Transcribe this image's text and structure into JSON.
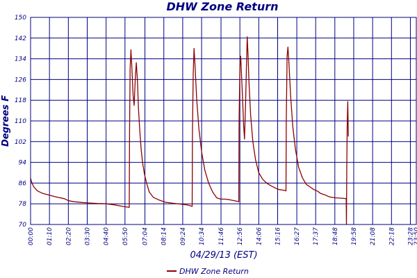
{
  "chart_data": {
    "type": "line",
    "title": "DHW Zone Return",
    "xlabel": "04/29/13 (EST)",
    "ylabel": "Degrees F",
    "ylim": [
      70,
      150
    ],
    "yticks": [
      70,
      78,
      86,
      94,
      102,
      110,
      118,
      126,
      134,
      142,
      150
    ],
    "xlim": [
      0,
      1430
    ],
    "xticks": [
      {
        "label": "00:00",
        "t": 0
      },
      {
        "label": "01:10",
        "t": 70
      },
      {
        "label": "02:20",
        "t": 140
      },
      {
        "label": "03:30",
        "t": 210
      },
      {
        "label": "04:40",
        "t": 280
      },
      {
        "label": "05:50",
        "t": 350
      },
      {
        "label": "07:04",
        "t": 424
      },
      {
        "label": "08:14",
        "t": 494
      },
      {
        "label": "09:24",
        "t": 564
      },
      {
        "label": "10:34",
        "t": 634
      },
      {
        "label": "11:46",
        "t": 706
      },
      {
        "label": "12:56",
        "t": 776
      },
      {
        "label": "14:06",
        "t": 846
      },
      {
        "label": "15:16",
        "t": 916
      },
      {
        "label": "16:27",
        "t": 987
      },
      {
        "label": "17:37",
        "t": 1057
      },
      {
        "label": "18:48",
        "t": 1128
      },
      {
        "label": "19:58",
        "t": 1198
      },
      {
        "label": "21:08",
        "t": 1268
      },
      {
        "label": "22:18",
        "t": 1338
      },
      {
        "label": "23:28",
        "t": 1408
      },
      {
        "label": "23:50",
        "t": 1430
      }
    ],
    "grid": true,
    "legend": "bottom",
    "colors": {
      "line": "#8b0000",
      "grid": "#00007f",
      "text": "#000080"
    },
    "series": [
      {
        "name": "DHW Zone Return",
        "points": [
          [
            0,
            87.8
          ],
          [
            5,
            86
          ],
          [
            12,
            84.5
          ],
          [
            25,
            83
          ],
          [
            45,
            82
          ],
          [
            70,
            81.3
          ],
          [
            100,
            80.5
          ],
          [
            125,
            80
          ],
          [
            140,
            79.2
          ],
          [
            160,
            78.8
          ],
          [
            190,
            78.5
          ],
          [
            220,
            78.3
          ],
          [
            250,
            78.1
          ],
          [
            280,
            78
          ],
          [
            310,
            77.6
          ],
          [
            340,
            77
          ],
          [
            366,
            76.6
          ],
          [
            367,
            105
          ],
          [
            369,
            130
          ],
          [
            372,
            137.5
          ],
          [
            375,
            132
          ],
          [
            380,
            120
          ],
          [
            384,
            116
          ],
          [
            388,
            126
          ],
          [
            392,
            132.5
          ],
          [
            396,
            126
          ],
          [
            400,
            115
          ],
          [
            405,
            106
          ],
          [
            410,
            99
          ],
          [
            415,
            94
          ],
          [
            422,
            89.5
          ],
          [
            430,
            86
          ],
          [
            440,
            82.5
          ],
          [
            455,
            80.5
          ],
          [
            475,
            79.5
          ],
          [
            500,
            78.6
          ],
          [
            530,
            78.2
          ],
          [
            560,
            77.8
          ],
          [
            585,
            77.5
          ],
          [
            599,
            77
          ],
          [
            600,
            105
          ],
          [
            603,
            128
          ],
          [
            606,
            138
          ],
          [
            610,
            131
          ],
          [
            616,
            118
          ],
          [
            624,
            107
          ],
          [
            634,
            98
          ],
          [
            646,
            91
          ],
          [
            660,
            86
          ],
          [
            675,
            82.5
          ],
          [
            690,
            80.3
          ],
          [
            705,
            79.8
          ],
          [
            720,
            79.8
          ],
          [
            735,
            79.6
          ],
          [
            750,
            79.3
          ],
          [
            765,
            79
          ],
          [
            772,
            78.8
          ],
          [
            773,
            110
          ],
          [
            776,
            131
          ],
          [
            779,
            135
          ],
          [
            782,
            128
          ],
          [
            786,
            118
          ],
          [
            790,
            108
          ],
          [
            793,
            103
          ],
          [
            797,
            116
          ],
          [
            800,
            130
          ],
          [
            803,
            142.5
          ],
          [
            806,
            136
          ],
          [
            810,
            124
          ],
          [
            816,
            112
          ],
          [
            824,
            102
          ],
          [
            834,
            95
          ],
          [
            846,
            90
          ],
          [
            860,
            87.5
          ],
          [
            875,
            86
          ],
          [
            890,
            85
          ],
          [
            905,
            84.2
          ],
          [
            920,
            83.5
          ],
          [
            935,
            83.3
          ],
          [
            947,
            83
          ],
          [
            948,
            110
          ],
          [
            951,
            135
          ],
          [
            954,
            138.5
          ],
          [
            958,
            132
          ],
          [
            964,
            120
          ],
          [
            972,
            108
          ],
          [
            982,
            99
          ],
          [
            994,
            92
          ],
          [
            1008,
            88
          ],
          [
            1022,
            85.5
          ],
          [
            1036,
            84.5
          ],
          [
            1050,
            83.5
          ],
          [
            1065,
            82.8
          ],
          [
            1075,
            82
          ],
          [
            1090,
            81.5
          ],
          [
            1105,
            80.8
          ],
          [
            1115,
            80.5
          ],
          [
            1130,
            80.3
          ],
          [
            1145,
            80.2
          ],
          [
            1160,
            80.1
          ],
          [
            1170,
            80
          ],
          [
            1171,
            70
          ],
          [
            1172,
            90
          ],
          [
            1174,
            109
          ],
          [
            1176,
            117.5
          ],
          [
            1178,
            104
          ]
        ]
      }
    ]
  }
}
